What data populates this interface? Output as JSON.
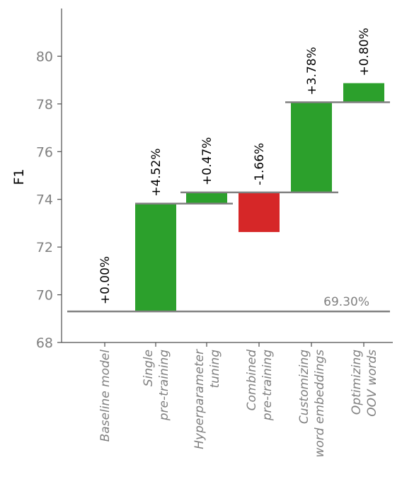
{
  "chart_data": {
    "type": "bar",
    "subtype": "waterfall",
    "ylabel": "F1",
    "ylim": [
      68,
      82
    ],
    "yticks": [
      "68",
      "70",
      "72",
      "74",
      "76",
      "78",
      "80"
    ],
    "categories": [
      [
        "Baseline model"
      ],
      [
        "Single",
        "pre-training"
      ],
      [
        "Hyperparameter",
        "tuning"
      ],
      [
        "Combined",
        "pre-training"
      ],
      [
        "Customizing",
        "word embeddings"
      ],
      [
        "Optimizing",
        "OOV words"
      ]
    ],
    "steps": [
      {
        "start": 69.3,
        "end": 69.3,
        "label": "+0.00%"
      },
      {
        "start": 69.3,
        "end": 73.82,
        "label": "+4.52%"
      },
      {
        "start": 73.82,
        "end": 74.29,
        "label": "+0.47%"
      },
      {
        "start": 74.29,
        "end": 72.63,
        "label": "-1.66%"
      },
      {
        "start": 74.29,
        "end": 78.07,
        "label": "+3.78%"
      },
      {
        "start": 78.07,
        "end": 78.87,
        "label": "+0.80%"
      }
    ],
    "baseline_label": "69.30%",
    "colors": {
      "increase": "#2ca02c",
      "decrease": "#d62728",
      "level_line": "#808080",
      "axis": "#4d4d4d",
      "tick_text": "#808080"
    },
    "grid": false
  }
}
